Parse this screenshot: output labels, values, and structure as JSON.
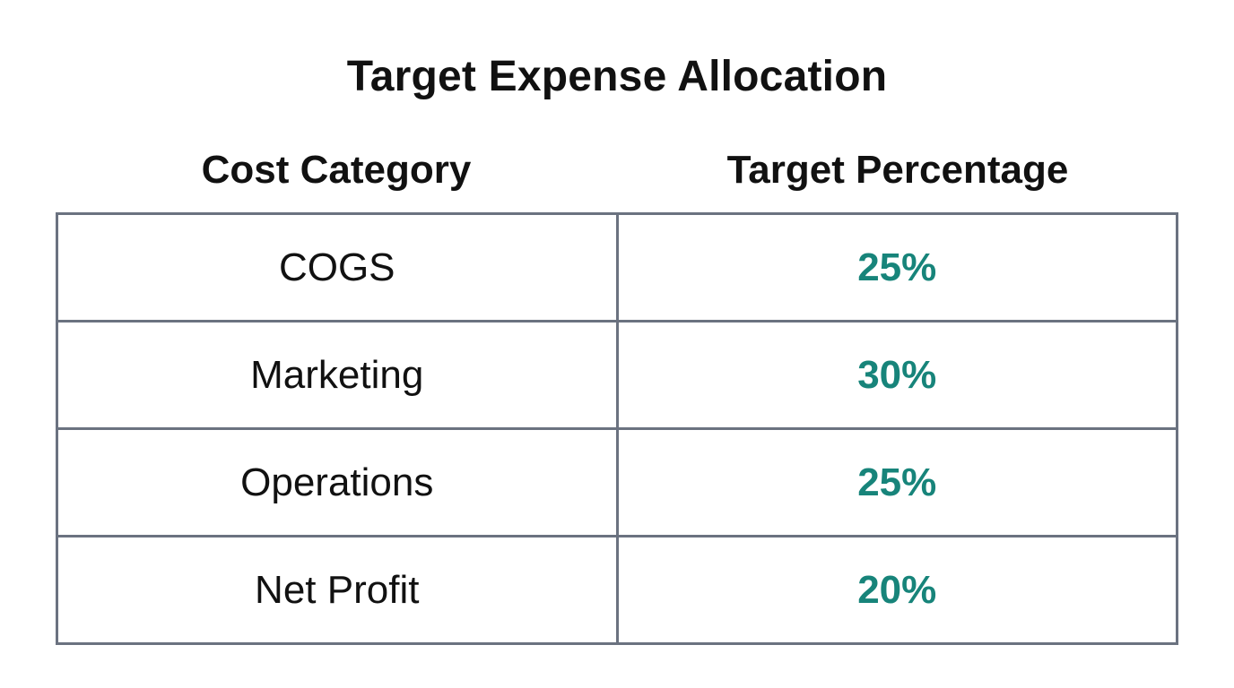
{
  "title": "Target Expense Allocation",
  "table": {
    "headers": [
      "Cost Category",
      "Target Percentage"
    ],
    "rows": [
      {
        "category": "COGS",
        "percentage": "25%"
      },
      {
        "category": "Marketing",
        "percentage": "30%"
      },
      {
        "category": "Operations",
        "percentage": "25%"
      },
      {
        "category": "Net Profit",
        "percentage": "20%"
      }
    ]
  },
  "colors": {
    "border": "#6b7280",
    "accent": "#17847a",
    "text": "#111111"
  }
}
